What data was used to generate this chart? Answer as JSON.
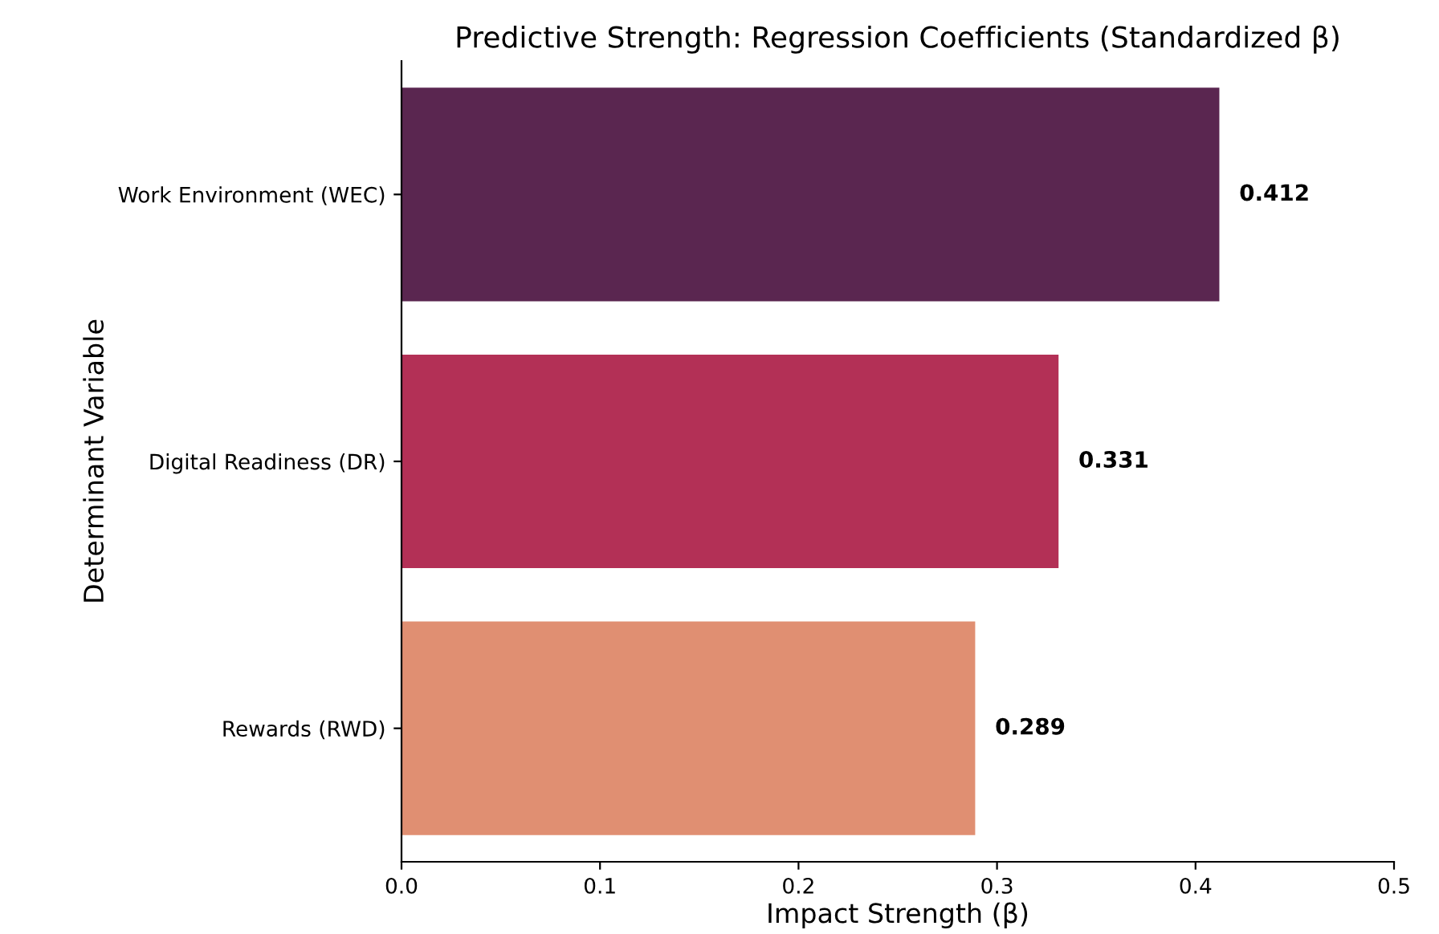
{
  "chart_data": {
    "type": "bar",
    "orientation": "horizontal",
    "title": "Predictive Strength: Regression Coefficients (Standardized β)",
    "xlabel": "Impact Strength (β)",
    "ylabel": "Determinant Variable",
    "categories": [
      "Work Environment (WEC)",
      "Digital Readiness (DR)",
      "Rewards (RWD)"
    ],
    "values": [
      0.412,
      0.331,
      0.289
    ],
    "colors": [
      "#5a2650",
      "#b33056",
      "#e08f72"
    ],
    "xlim": [
      0,
      0.5
    ],
    "xticks": [
      {
        "value": 0,
        "label": "0.0"
      },
      0.1,
      0.2,
      0.3,
      0.4,
      0.5
    ],
    "value_labels": [
      "0.412",
      "0.331",
      "0.289"
    ],
    "grid": false
  }
}
